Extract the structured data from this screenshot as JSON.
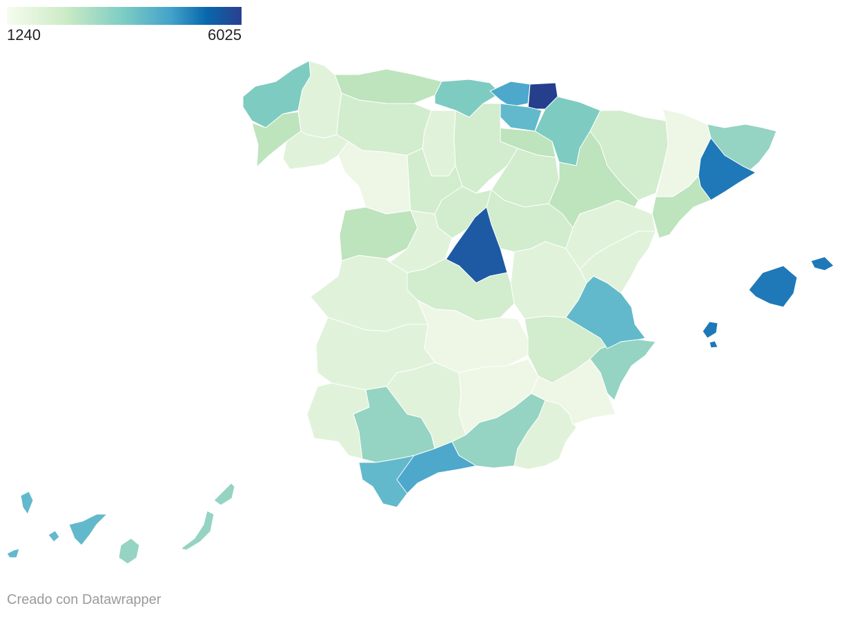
{
  "legend": {
    "min_label": "1240",
    "max_label": "6025"
  },
  "credit": "Creado con Datawrapper",
  "colors": {
    "c1": "#eef7e6",
    "c2": "#e1f2da",
    "c3": "#d2ecce",
    "c4": "#bde4bd",
    "c5": "#95d3c3",
    "c6": "#7ecbc2",
    "c7": "#62b9cb",
    "c8": "#4da8cb",
    "c9": "#1f79b8",
    "c10": "#1e5aa3",
    "c11": "#253f8c"
  }
}
